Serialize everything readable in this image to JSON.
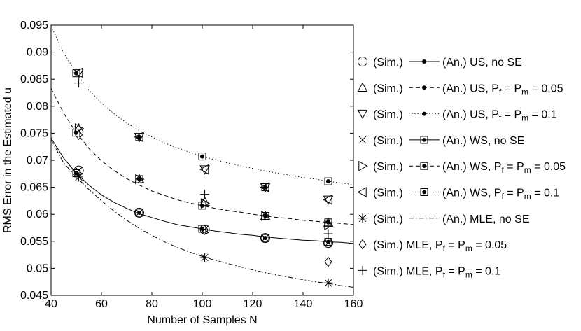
{
  "chart_data": {
    "type": "scatter",
    "title": "",
    "xlabel": "Number of Samples N",
    "ylabel": "RMS Error in the Estimated u",
    "xlim": [
      40,
      160
    ],
    "ylim": [
      0.045,
      0.095
    ],
    "grid": false,
    "legend_position": "right",
    "x_ticks": [
      "40",
      "60",
      "80",
      "100",
      "120",
      "140",
      "160"
    ],
    "y_ticks": [
      "0.045",
      "0.05",
      "0.055",
      "0.06",
      "0.065",
      "0.07",
      "0.075",
      "0.08",
      "0.085",
      "0.09",
      "0.095"
    ],
    "curves": [
      {
        "name": "US/WS, no SE",
        "style": "solid",
        "x": [
          40,
          45,
          50,
          55,
          60,
          65,
          70,
          75,
          80,
          85,
          90,
          95,
          100,
          105,
          110,
          115,
          120,
          125,
          130,
          135,
          140,
          145,
          150,
          155,
          160
        ],
        "y": [
          0.0741,
          0.0704,
          0.0676,
          0.0654,
          0.0636,
          0.0622,
          0.0611,
          0.0601,
          0.0594,
          0.0587,
          0.0581,
          0.0577,
          0.0573,
          0.0569,
          0.0566,
          0.0563,
          0.0561,
          0.0558,
          0.0556,
          0.0554,
          0.0552,
          0.0551,
          0.0549,
          0.0548,
          0.0546
        ]
      },
      {
        "name": "US/WS, Pf = Pm = 0.05",
        "style": "dashed",
        "x": [
          40,
          45,
          50,
          55,
          60,
          65,
          70,
          75,
          80,
          85,
          90,
          95,
          100,
          105,
          110,
          115,
          120,
          125,
          130,
          135,
          140,
          145,
          150,
          155,
          160
        ],
        "y": [
          0.0833,
          0.0787,
          0.0751,
          0.0722,
          0.0699,
          0.0681,
          0.0666,
          0.0654,
          0.0643,
          0.0635,
          0.0627,
          0.0621,
          0.0616,
          0.0611,
          0.0607,
          0.0604,
          0.06,
          0.0597,
          0.0594,
          0.0592,
          0.0589,
          0.0587,
          0.0585,
          0.0583,
          0.0581
        ]
      },
      {
        "name": "US/WS, Pf = Pm = 0.1",
        "style": "dotted",
        "x": [
          40,
          45,
          50,
          55,
          60,
          65,
          70,
          75,
          80,
          85,
          90,
          95,
          100,
          105,
          110,
          115,
          120,
          125,
          130,
          135,
          140,
          145,
          150,
          155,
          160
        ],
        "y": [
          0.0948,
          0.0899,
          0.0861,
          0.083,
          0.0806,
          0.0786,
          0.0769,
          0.0755,
          0.0743,
          0.0732,
          0.0723,
          0.0715,
          0.0707,
          0.0701,
          0.0695,
          0.069,
          0.0685,
          0.068,
          0.0676,
          0.0672,
          0.0668,
          0.0665,
          0.0661,
          0.0658,
          0.0655
        ]
      },
      {
        "name": "MLE, no SE",
        "style": "dashdot",
        "x": [
          40,
          45,
          50,
          55,
          60,
          65,
          70,
          75,
          80,
          85,
          90,
          95,
          100,
          105,
          110,
          115,
          120,
          125,
          130,
          135,
          140,
          145,
          150,
          155,
          160
        ],
        "y": [
          0.0738,
          0.0695,
          0.0669,
          0.0646,
          0.0625,
          0.0606,
          0.0589,
          0.0574,
          0.0561,
          0.0549,
          0.0539,
          0.053,
          0.0522,
          0.0515,
          0.0509,
          0.0503,
          0.0497,
          0.0492,
          0.0487,
          0.0483,
          0.0479,
          0.0475,
          0.0472,
          0.0468,
          0.0465
        ]
      }
    ],
    "series": [
      {
        "name": "US, no SE",
        "kind": "analytical",
        "marker": "dot",
        "x": [
          50,
          75,
          100,
          125,
          150
        ],
        "y": [
          0.0676,
          0.0603,
          0.0573,
          0.0556,
          0.0549
        ]
      },
      {
        "name": "US, Pf = Pm = 0.05",
        "kind": "analytical",
        "marker": "dot",
        "x": [
          50,
          75,
          100,
          125,
          150
        ],
        "y": [
          0.0751,
          0.0665,
          0.0616,
          0.0597,
          0.0585
        ]
      },
      {
        "name": "US, Pf = Pm = 0.1",
        "kind": "analytical",
        "marker": "dot",
        "x": [
          50,
          75,
          100,
          125,
          150
        ],
        "y": [
          0.0861,
          0.0743,
          0.0707,
          0.065,
          0.0661
        ]
      },
      {
        "name": "WS, no SE",
        "kind": "analytical",
        "marker": "square",
        "x": [
          50,
          75,
          100,
          125,
          150
        ],
        "y": [
          0.0676,
          0.0603,
          0.0573,
          0.0556,
          0.0549
        ]
      },
      {
        "name": "WS, Pf = Pm = 0.05",
        "kind": "analytical",
        "marker": "square",
        "x": [
          50,
          75,
          100,
          125,
          150
        ],
        "y": [
          0.0751,
          0.0665,
          0.0616,
          0.0597,
          0.0585
        ]
      },
      {
        "name": "WS, Pf = Pm = 0.1",
        "kind": "analytical",
        "marker": "square",
        "x": [
          50,
          75,
          100,
          125,
          150
        ],
        "y": [
          0.0861,
          0.0743,
          0.0707,
          0.065,
          0.0661
        ]
      },
      {
        "name": "(Sim.) US, no SE",
        "kind": "simulated",
        "marker": "circle",
        "x": [
          51,
          75,
          101,
          125,
          150
        ],
        "y": [
          0.0681,
          0.0603,
          0.0572,
          0.0556,
          0.0547
        ]
      },
      {
        "name": "(Sim.) US, Pf = Pm = 0.05",
        "kind": "simulated",
        "marker": "triangle-up",
        "x": [
          51,
          75,
          101,
          125,
          150
        ],
        "y": [
          0.0759,
          0.0665,
          0.0623,
          0.0597,
          0.0584
        ]
      },
      {
        "name": "(Sim.) US, Pf = Pm = 0.1",
        "kind": "simulated",
        "marker": "triangle-down",
        "x": [
          51,
          75,
          101,
          125,
          150
        ],
        "y": [
          0.0862,
          0.0743,
          0.0683,
          0.065,
          0.0627
        ]
      },
      {
        "name": "(Sim.) WS, no SE",
        "kind": "simulated",
        "marker": "x",
        "x": [
          51,
          75,
          101,
          125,
          150
        ],
        "y": [
          0.0681,
          0.0603,
          0.0572,
          0.0556,
          0.0547
        ]
      },
      {
        "name": "(Sim.) WS, Pf = Pm = 0.05",
        "kind": "simulated",
        "marker": "triangle-right",
        "x": [
          51,
          75,
          101,
          125,
          150
        ],
        "y": [
          0.0759,
          0.0665,
          0.062,
          0.0597,
          0.058
        ]
      },
      {
        "name": "(Sim.) WS, Pf = Pm = 0.1",
        "kind": "simulated",
        "marker": "triangle-left",
        "x": [
          51,
          75,
          101,
          125,
          150
        ],
        "y": [
          0.0862,
          0.0743,
          0.0683,
          0.065,
          0.0627
        ]
      },
      {
        "name": "(Sim.) MLE, no SE",
        "kind": "simulated",
        "marker": "asterisk",
        "x": [
          51,
          101,
          150
        ],
        "y": [
          0.0669,
          0.052,
          0.0473
        ]
      },
      {
        "name": "(Sim.) MLE, Pf = Pm = 0.05",
        "kind": "simulated",
        "marker": "diamond",
        "x": [
          51,
          101,
          150
        ],
        "y": [
          0.0747,
          0.0571,
          0.0512
        ]
      },
      {
        "name": "(Sim.) MLE, Pf = Pm = 0.1",
        "kind": "simulated",
        "marker": "plus",
        "x": [
          51,
          101,
          150
        ],
        "y": [
          0.0843,
          0.0637,
          0.0564
        ]
      }
    ],
    "legend": [
      {
        "sim_marker": "circle",
        "line": "solid",
        "an_marker": "dot",
        "text": "(An.) US, no SE",
        "sub": false
      },
      {
        "sim_marker": "triangle-up",
        "line": "dashed",
        "an_marker": "dot",
        "text": "(An.) US, P",
        "tail": " = P",
        "tail2": " = 0.05",
        "sub": true
      },
      {
        "sim_marker": "triangle-down",
        "line": "dotted",
        "an_marker": "dot",
        "text": "(An.) US, P",
        "tail": " = P",
        "tail2": " = 0.1",
        "sub": true
      },
      {
        "sim_marker": "x",
        "line": "solid",
        "an_marker": "square",
        "text": "(An.) WS, no SE",
        "sub": false
      },
      {
        "sim_marker": "triangle-right",
        "line": "dashed",
        "an_marker": "square",
        "text": "(An.) WS, P",
        "tail": " = P",
        "tail2": " = 0.05",
        "sub": true
      },
      {
        "sim_marker": "triangle-left",
        "line": "dotted",
        "an_marker": "square",
        "text": "(An.) WS, P",
        "tail": " = P",
        "tail2": " = 0.1",
        "sub": true
      },
      {
        "sim_marker": "asterisk",
        "line": "dashdot",
        "an_marker": "none",
        "text": "(An.) MLE, no SE",
        "sub": false
      },
      {
        "sim_marker": "diamond",
        "line": "none",
        "an_marker": "none",
        "text": "(Sim.) MLE, P",
        "tail": " = P",
        "tail2": " = 0.05",
        "sub": true,
        "sim_only": true
      },
      {
        "sim_marker": "plus",
        "line": "none",
        "an_marker": "none",
        "text": "(Sim.) MLE, P",
        "tail": " = P",
        "tail2": " = 0.1",
        "sub": true,
        "sim_only": true
      }
    ],
    "legend_sim_label": "(Sim.)",
    "subscripts": [
      "f",
      "m"
    ]
  }
}
